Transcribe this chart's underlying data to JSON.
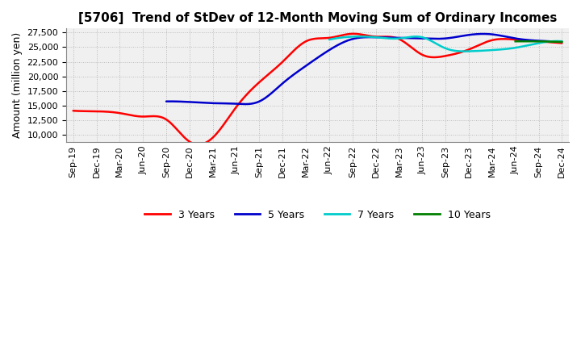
{
  "title": "[5706]  Trend of StDev of 12-Month Moving Sum of Ordinary Incomes",
  "ylabel": "Amount (million yen)",
  "background_color": "#ffffff",
  "plot_bg_color": "#f0f0f0",
  "ylim": [
    8800,
    28200
  ],
  "yticks": [
    10000,
    12500,
    15000,
    17500,
    20000,
    22500,
    25000,
    27500
  ],
  "x_labels": [
    "Sep-19",
    "Dec-19",
    "Mar-20",
    "Jun-20",
    "Sep-20",
    "Dec-20",
    "Mar-21",
    "Jun-21",
    "Sep-21",
    "Dec-21",
    "Mar-22",
    "Jun-22",
    "Sep-22",
    "Dec-22",
    "Mar-23",
    "Jun-23",
    "Sep-23",
    "Dec-23",
    "Mar-24",
    "Jun-24",
    "Sep-24",
    "Dec-24"
  ],
  "series": {
    "3yr": {
      "color": "#ff0000",
      "label": "3 Years",
      "y": [
        14100,
        14000,
        13700,
        13100,
        12600,
        8800,
        9500,
        14700,
        19000,
        22500,
        26000,
        26600,
        27300,
        26800,
        26400,
        23700,
        23500,
        24600,
        26200,
        26300,
        26000,
        25700
      ]
    },
    "5yr": {
      "color": "#0000cc",
      "label": "5 Years",
      "y": [
        null,
        null,
        null,
        null,
        15700,
        15600,
        15400,
        15300,
        15700,
        18800,
        21800,
        24500,
        26400,
        26700,
        26600,
        26500,
        26500,
        27100,
        27200,
        26500,
        26100,
        25900
      ]
    },
    "7yr": {
      "color": "#00cccc",
      "label": "7 Years",
      "y": [
        null,
        null,
        null,
        null,
        null,
        null,
        null,
        null,
        null,
        null,
        null,
        26300,
        26800,
        26700,
        26500,
        26700,
        24800,
        24300,
        24500,
        24900,
        25700,
        26000
      ]
    },
    "10yr": {
      "color": "#008000",
      "label": "10 Years",
      "y": [
        null,
        null,
        null,
        null,
        null,
        null,
        null,
        null,
        null,
        null,
        null,
        null,
        null,
        null,
        null,
        null,
        null,
        null,
        null,
        26000,
        26000,
        25900
      ]
    }
  },
  "grid_color": "#bbbbbb",
  "grid_linestyle": ":",
  "title_fontsize": 11,
  "tick_fontsize": 8,
  "label_fontsize": 9
}
